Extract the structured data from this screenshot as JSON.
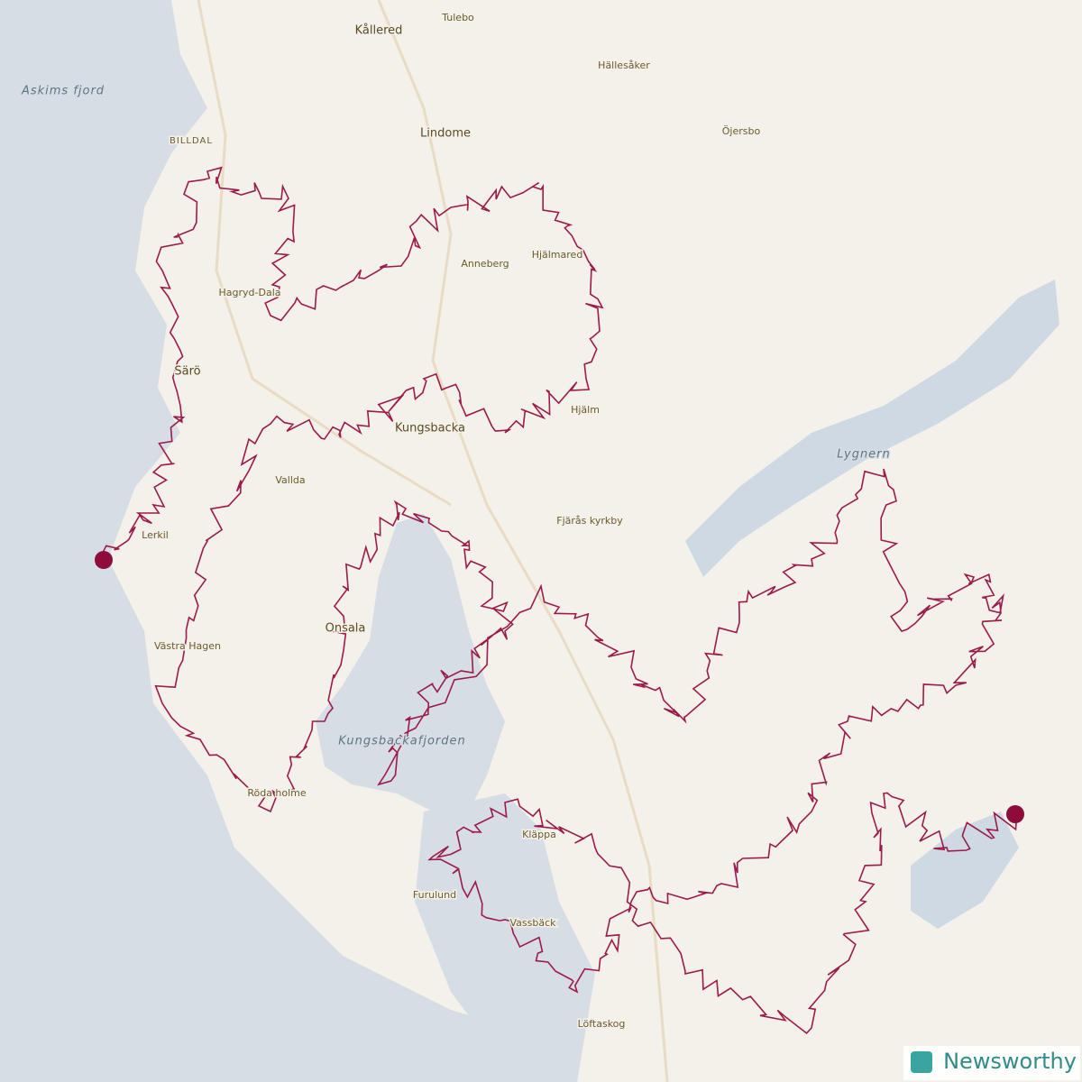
{
  "map": {
    "places": [
      "Kållered",
      "Tulebo",
      "Hällesåker",
      "Lindome",
      "Öjersbo",
      "BILLDAL",
      "Anneberg",
      "Hjälmared",
      "Hagryd-Dala",
      "Särö",
      "Kungsbacka",
      "Hjälm",
      "Vallda",
      "Lerkil",
      "Fjärås kyrkby",
      "Onsala",
      "Västra Hagen",
      "Röda holme",
      "Kläppa",
      "Furulund",
      "Vassbäck",
      "Löftaskog"
    ],
    "waters": [
      "Askims fjord",
      "Lygnern",
      "Kungsbackafjorden"
    ],
    "logo": "Newsworthy"
  }
}
